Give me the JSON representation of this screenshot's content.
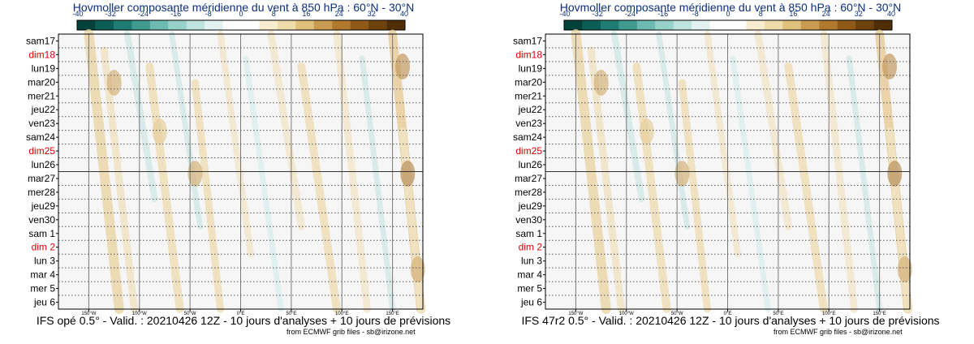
{
  "colors": {
    "weekday": "#000000",
    "sunday": "#dd0000",
    "title": "#0b2f7a",
    "scale": [
      "#01423a",
      "#0b5e55",
      "#1f7c72",
      "#3f9a90",
      "#6cbab1",
      "#97d2ca",
      "#bfe4df",
      "#e1f2f0",
      "#ffffff",
      "#ffffff",
      "#f7ecd0",
      "#efdcaa",
      "#dfc07d",
      "#c99a50",
      "#b07a2e",
      "#8f5a17",
      "#6e420c",
      "#4f2d05"
    ]
  },
  "panels": [
    {
      "title": "Hovmoller composante méridienne du vent à 850 hPa : 60°N - 30°N",
      "footer": "IFS opé 0.5° - Valid. : 20210426 12Z - 10 jours d'analyses + 10 jours de prévisions",
      "credit": "from ECMWF grib files - sb@irizone.net"
    },
    {
      "title": "Hovmoller composante méridienne du vent à 850 hPa : 60°N - 30°N",
      "footer": "IFS 47r2 0.5° - Valid. : 20210426 12Z - 10 jours d'analyses + 10 jours de prévisions",
      "credit": "from ECMWF grib files - sb@irizone.net"
    }
  ],
  "chart_data": [
    {
      "type": "heatmap",
      "title": "Hovmoller composante méridienne du vent à 850 hPa : 60°N - 30°N",
      "colorbar": {
        "ticks": [
          "-40",
          "-32",
          "-24",
          "-16",
          "-8",
          "0",
          "8",
          "16",
          "24",
          "32",
          "40"
        ],
        "range": [
          -40,
          40
        ]
      },
      "x_ticks": [
        "150°W",
        "100°W",
        "50°W",
        "0°E",
        "50°E",
        "100°E",
        "150°E"
      ],
      "xlim": [
        -180,
        180
      ],
      "days": [
        {
          "label": "sam17",
          "sunday": false
        },
        {
          "label": "dim18",
          "sunday": true
        },
        {
          "label": "lun19",
          "sunday": false
        },
        {
          "label": "mar20",
          "sunday": false
        },
        {
          "label": "mer21",
          "sunday": false
        },
        {
          "label": "jeu22",
          "sunday": false
        },
        {
          "label": "ven23",
          "sunday": false
        },
        {
          "label": "sam24",
          "sunday": false
        },
        {
          "label": "dim25",
          "sunday": true
        },
        {
          "label": "lun26",
          "sunday": false
        },
        {
          "label": "mar27",
          "sunday": false
        },
        {
          "label": "mer28",
          "sunday": false
        },
        {
          "label": "jeu29",
          "sunday": false
        },
        {
          "label": "ven30",
          "sunday": false
        },
        {
          "label": "sam 1",
          "sunday": false
        },
        {
          "label": "dim 2",
          "sunday": true
        },
        {
          "label": "lun 3",
          "sunday": false
        },
        {
          "label": "mar 4",
          "sunday": false
        },
        {
          "label": "mer 5",
          "sunday": false
        },
        {
          "label": "jeu 6",
          "sunday": false
        }
      ],
      "analysis_end": "lun26"
    },
    {
      "type": "heatmap",
      "title": "Hovmoller composante méridienne du vent à 850 hPa : 60°N - 30°N",
      "colorbar": {
        "ticks": [
          "-40",
          "-32",
          "-24",
          "-16",
          "-8",
          "0",
          "8",
          "16",
          "24",
          "32",
          "40"
        ],
        "range": [
          -40,
          40
        ]
      },
      "x_ticks": [
        "150°W",
        "100°W",
        "50°W",
        "0°E",
        "50°E",
        "100°E",
        "150°E"
      ],
      "xlim": [
        -180,
        180
      ],
      "days": [
        {
          "label": "sam17",
          "sunday": false
        },
        {
          "label": "dim18",
          "sunday": true
        },
        {
          "label": "lun19",
          "sunday": false
        },
        {
          "label": "mar20",
          "sunday": false
        },
        {
          "label": "mer21",
          "sunday": false
        },
        {
          "label": "jeu22",
          "sunday": false
        },
        {
          "label": "ven23",
          "sunday": false
        },
        {
          "label": "sam24",
          "sunday": false
        },
        {
          "label": "dim25",
          "sunday": true
        },
        {
          "label": "lun26",
          "sunday": false
        },
        {
          "label": "mar27",
          "sunday": false
        },
        {
          "label": "mer28",
          "sunday": false
        },
        {
          "label": "jeu29",
          "sunday": false
        },
        {
          "label": "ven30",
          "sunday": false
        },
        {
          "label": "sam 1",
          "sunday": false
        },
        {
          "label": "dim 2",
          "sunday": true
        },
        {
          "label": "lun 3",
          "sunday": false
        },
        {
          "label": "mar 4",
          "sunday": false
        },
        {
          "label": "mer 5",
          "sunday": false
        },
        {
          "label": "jeu 6",
          "sunday": false
        }
      ],
      "analysis_end": "lun26"
    }
  ]
}
